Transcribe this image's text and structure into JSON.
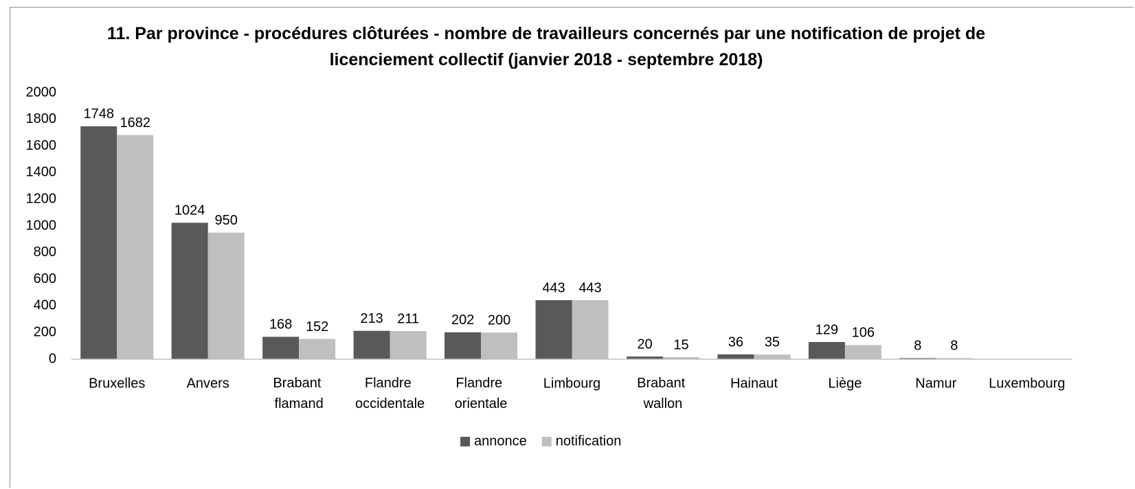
{
  "chart_data": {
    "type": "bar",
    "title": "11. Par province - procédures clôturées - nombre de travailleurs concernés par une notification de projet de licenciement collectif (janvier 2018 - septembre 2018)",
    "categories": [
      "Bruxelles",
      "Anvers",
      "Brabant flamand",
      "Flandre occidentale",
      "Flandre orientale",
      "Limbourg",
      "Brabant wallon",
      "Hainaut",
      "Liège",
      "Namur",
      "Luxembourg"
    ],
    "series": [
      {
        "name": "annonce",
        "color": "#595959",
        "values": [
          1748,
          1024,
          168,
          213,
          202,
          443,
          20,
          36,
          129,
          8,
          null
        ]
      },
      {
        "name": "notification",
        "color": "#bfbfbf",
        "values": [
          1682,
          950,
          152,
          211,
          200,
          443,
          15,
          35,
          106,
          8,
          null
        ]
      }
    ],
    "ylim": [
      0,
      2000
    ],
    "yticks": [
      0,
      200,
      400,
      600,
      800,
      1000,
      1200,
      1400,
      1600,
      1800,
      2000
    ],
    "grid": false,
    "legend": "bottom"
  }
}
